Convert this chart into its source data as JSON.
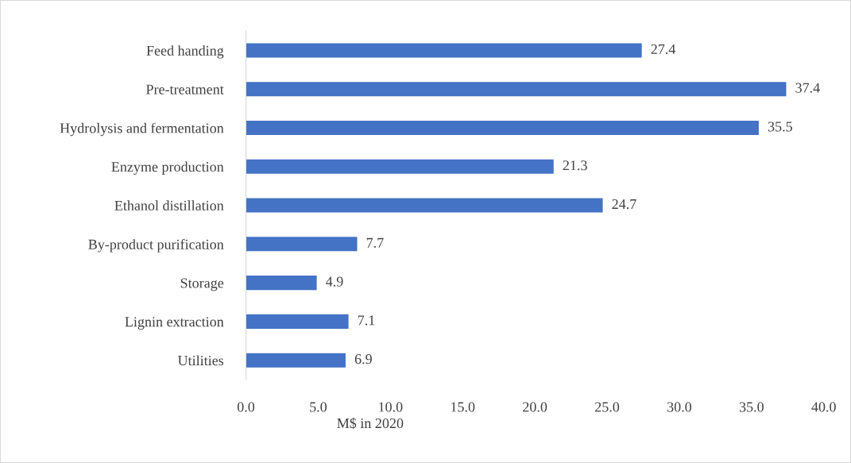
{
  "chart_data": {
    "type": "bar",
    "orientation": "horizontal",
    "categories": [
      "Feed handing",
      "Pre-treatment",
      "Hydrolysis and fermentation",
      "Enzyme production",
      "Ethanol distillation",
      "By-product purification",
      "Storage",
      "Lignin extraction",
      "Utilities"
    ],
    "values": [
      27.4,
      37.4,
      35.5,
      21.3,
      24.7,
      7.7,
      4.9,
      7.1,
      6.9
    ],
    "color": "#4472c4",
    "xlabel": "M$ in 2020",
    "xlim": [
      0,
      40
    ],
    "xticks": [
      {
        "value": 0,
        "label": "0.0"
      },
      {
        "value": 5,
        "label": "5.0"
      },
      {
        "value": 10,
        "label": "10.0"
      },
      {
        "value": 15,
        "label": "15.0"
      },
      {
        "value": 20,
        "label": "20.0"
      },
      {
        "value": 25,
        "label": "25.0"
      },
      {
        "value": 30,
        "label": "30.0"
      },
      {
        "value": 35,
        "label": "35.0"
      },
      {
        "value": 40,
        "label": "40.0"
      }
    ],
    "data_labels": true,
    "grid": false,
    "legend": false
  }
}
